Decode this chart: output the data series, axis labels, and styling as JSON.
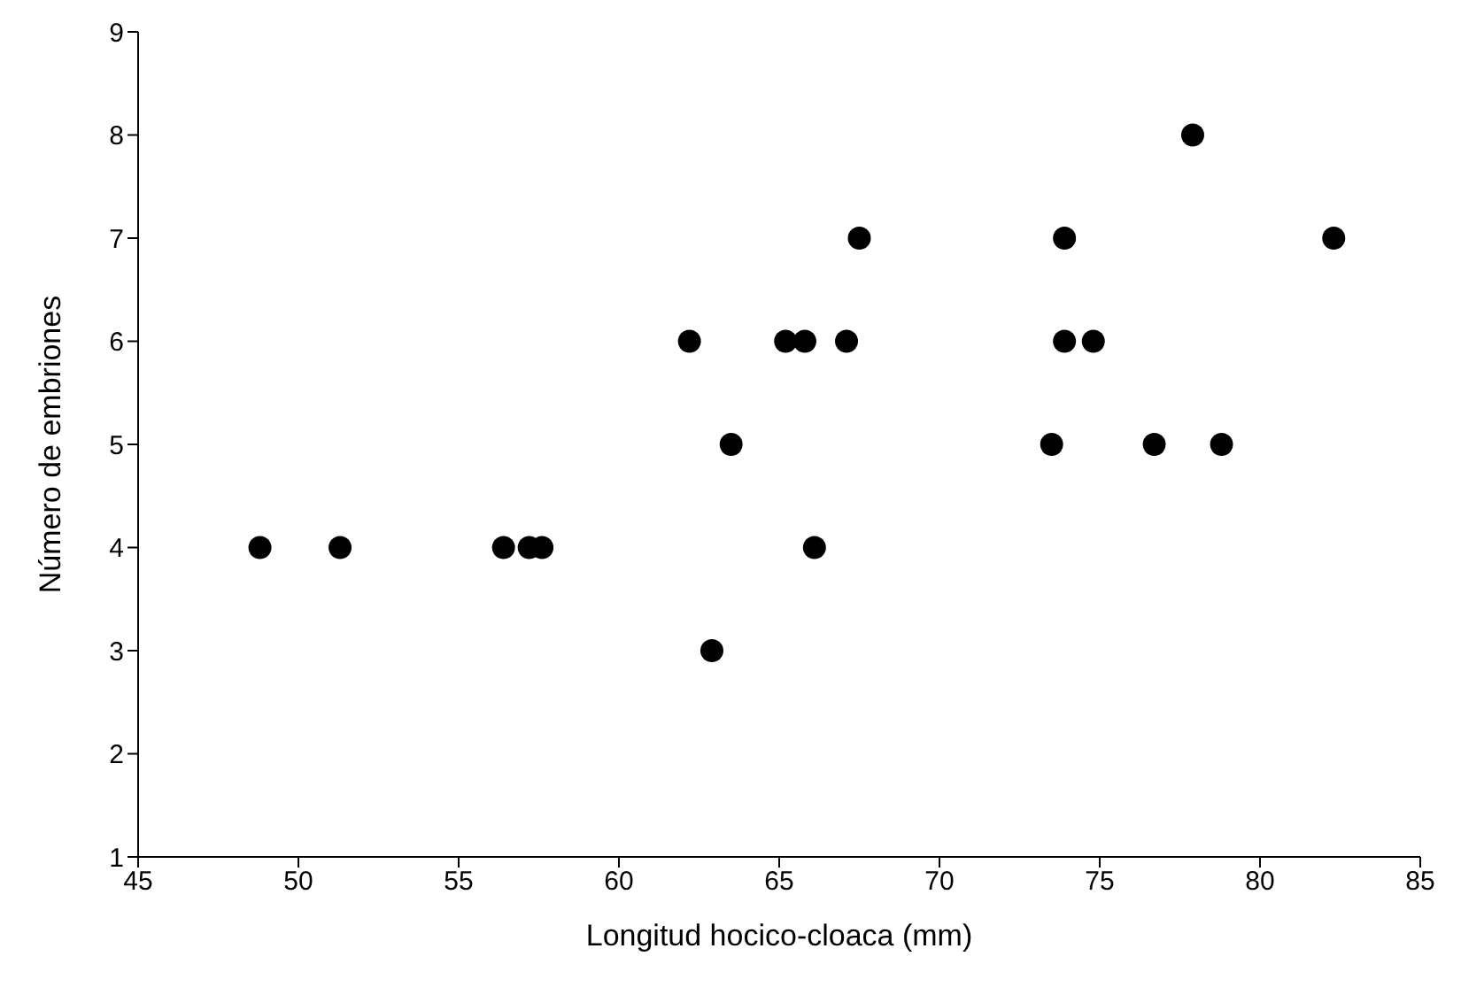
{
  "chart_data": {
    "type": "scatter",
    "xlabel": "Longitud hocico-cloaca (mm)",
    "ylabel": "Número de embriones",
    "x": [
      48.8,
      51.3,
      56.4,
      57.2,
      57.6,
      62.2,
      62.9,
      63.5,
      65.2,
      65.8,
      66.1,
      67.1,
      67.5,
      73.5,
      73.9,
      73.9,
      74.8,
      76.7,
      77.9,
      78.8,
      82.3
    ],
    "series": [
      {
        "color": "#000000",
        "values": [
          4,
          4,
          4,
          4,
          4,
          6,
          3,
          5,
          6,
          6,
          4,
          6,
          7,
          5,
          6,
          7,
          6,
          5,
          8,
          5,
          7
        ]
      }
    ],
    "xlim": [
      45,
      85
    ],
    "xticks": [
      45,
      50,
      55,
      60,
      65,
      70,
      75,
      80,
      85
    ],
    "ylim": [
      1,
      9
    ],
    "yticks": [
      1,
      2,
      3,
      4,
      5,
      6,
      7,
      8,
      9
    ],
    "grid": false,
    "legend": false,
    "marker": "circle"
  }
}
